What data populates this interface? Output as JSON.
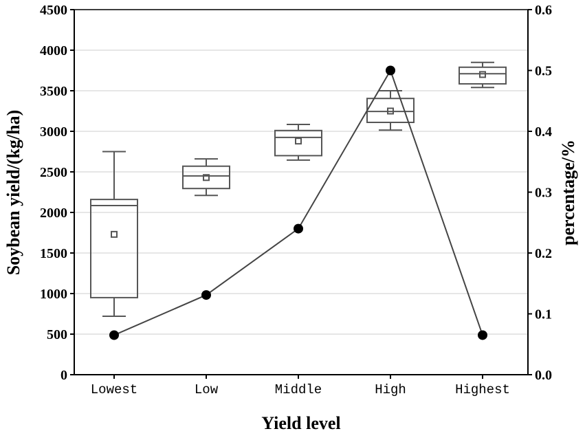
{
  "chart_data": {
    "type": "box+line",
    "xlabel": "Yield level",
    "ylabel": "Soybean yield/(kg/ha)",
    "y2label": "percentage/%",
    "categories": [
      "Lowest",
      "Low",
      "Middle",
      "High",
      "Highest"
    ],
    "ylim": [
      0,
      4500
    ],
    "yticks": [
      "0",
      "500",
      "1000",
      "1500",
      "2000",
      "2500",
      "3000",
      "3500",
      "4000",
      "4500"
    ],
    "y2lim": [
      0,
      0.6
    ],
    "y2ticks": [
      "0.0",
      "0.1",
      "0.2",
      "0.3",
      "0.4",
      "0.5",
      "0.6"
    ],
    "grid": true,
    "boxes": [
      {
        "category": "Lowest",
        "whisker_low": 720,
        "q1": 950,
        "median": 2085,
        "q3": 2160,
        "whisker_high": 2750,
        "mean": 1730
      },
      {
        "category": "Low",
        "whisker_low": 2210,
        "q1": 2295,
        "median": 2450,
        "q3": 2570,
        "whisker_high": 2660,
        "mean": 2430
      },
      {
        "category": "Middle",
        "whisker_low": 2645,
        "q1": 2700,
        "median": 2925,
        "q3": 3010,
        "whisker_high": 3085,
        "mean": 2880
      },
      {
        "category": "High",
        "whisker_low": 3015,
        "q1": 3110,
        "median": 3245,
        "q3": 3405,
        "whisker_high": 3500,
        "mean": 3250
      },
      {
        "category": "Highest",
        "whisker_low": 3540,
        "q1": 3585,
        "median": 3710,
        "q3": 3790,
        "whisker_high": 3850,
        "mean": 3700
      }
    ],
    "percentage_series": {
      "name": "percentage",
      "axis": "right",
      "values": [
        0.065,
        0.131,
        0.24,
        0.5,
        0.065
      ]
    }
  }
}
